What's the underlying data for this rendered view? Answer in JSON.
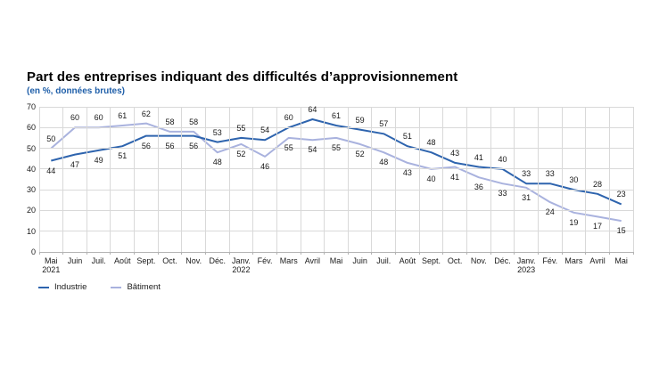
{
  "chart_data": {
    "type": "line",
    "title": "Part des entreprises indiquant des difficultés d’approvisionnement",
    "subtitle": "(en %, données brutes)",
    "ylim": [
      0,
      70
    ],
    "yticks": [
      0,
      10,
      20,
      30,
      40,
      50,
      60,
      70
    ],
    "grid": true,
    "legend_position": "bottom-left",
    "categories": [
      "Mai",
      "Juin",
      "Juil.",
      "Août",
      "Sept.",
      "Oct.",
      "Nov.",
      "Déc.",
      "Janv.",
      "Fév.",
      "Mars",
      "Avril",
      "Mai",
      "Juin",
      "Juil.",
      "Août",
      "Sept.",
      "Oct.",
      "Nov.",
      "Déc.",
      "Janv.",
      "Fév.",
      "Mars",
      "Avril",
      "Mai"
    ],
    "year_labels": [
      {
        "index": 0,
        "year": "2021"
      },
      {
        "index": 8,
        "year": "2022"
      },
      {
        "index": 20,
        "year": "2023"
      }
    ],
    "series": [
      {
        "key": "industrie",
        "name": "Industrie",
        "color": "#2e64ae",
        "values": [
          44,
          47,
          49,
          51,
          56,
          56,
          56,
          53,
          55,
          54,
          60,
          64,
          61,
          59,
          57,
          51,
          48,
          43,
          41,
          40,
          33,
          33,
          30,
          28,
          23
        ]
      },
      {
        "key": "batiment",
        "name": "Bâtiment",
        "color": "#a9b2de",
        "values": [
          50,
          60,
          60,
          61,
          62,
          58,
          58,
          48,
          52,
          46,
          55,
          54,
          55,
          52,
          48,
          43,
          40,
          41,
          36,
          33,
          31,
          24,
          19,
          17,
          15
        ]
      }
    ],
    "colors": {
      "title": "#000000",
      "subtitle": "#1f5fa9",
      "gridline": "#d9d9d9",
      "axis_line": "#b3b3b3",
      "tick_text": "#1a1a1a",
      "data_label": "#1a1a1a"
    }
  }
}
